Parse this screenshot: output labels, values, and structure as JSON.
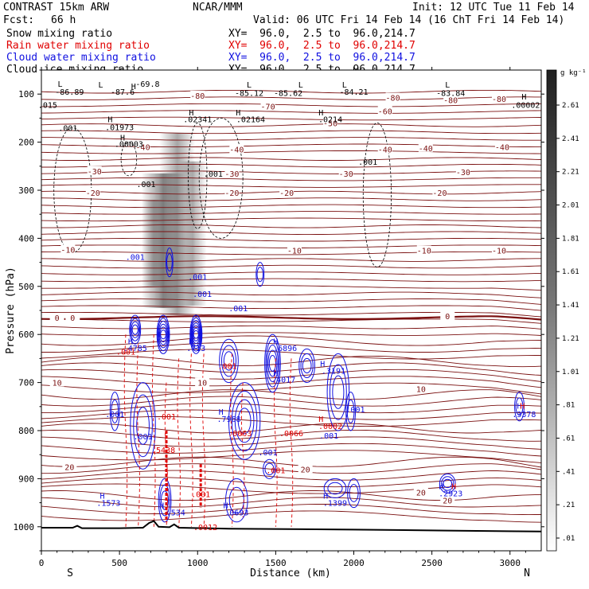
{
  "header": {
    "model": "CONTRAST 15km ARW",
    "org": "NCAR/MMM",
    "init": "Init: 12 UTC Tue 11 Feb 14",
    "fcst_label": "Fcst:",
    "fcst_value": "66 h",
    "valid": "Valid: 06 UTC Fri 14 Feb 14 (16 ChT Fri 14 Feb 14)",
    "fields": [
      {
        "name": "Snow mixing ratio",
        "xy": "XY=  96.0,  2.5 to  96.0,214.7",
        "color": "#000000"
      },
      {
        "name": "Rain water mixing ratio",
        "xy": "XY=  96.0,  2.5 to  96.0,214.7",
        "color": "#e00000"
      },
      {
        "name": "Cloud water mixing ratio",
        "xy": "XY=  96.0,  2.5 to  96.0,214.7",
        "color": "#1010e0"
      },
      {
        "name": "Cloud ice mixing ratio",
        "xy": "XY=  96.0,  2.5 to  96.0,214.7",
        "color": "#000000"
      }
    ]
  },
  "chart_data": {
    "type": "heatmap",
    "title": "",
    "xlabel": "Distance (km)",
    "ylabel": "Pressure (hPa)",
    "xlim": [
      0,
      3200
    ],
    "ylim": [
      1050,
      50
    ],
    "x_ticks": [
      0,
      500,
      1000,
      1500,
      2000,
      2500,
      3000
    ],
    "y_ticks": [
      100,
      200,
      300,
      400,
      500,
      600,
      700,
      800,
      900,
      1000
    ],
    "x_end_labels": {
      "left": "S",
      "right": "N"
    },
    "colorbar": {
      "unit": "g kg⁻¹",
      "ticks": [
        "2.61",
        "2.41",
        "2.21",
        "2.01",
        "1.81",
        "1.61",
        "1.41",
        "1.21",
        "1.01",
        ".81",
        ".61",
        ".41",
        ".21",
        ".01"
      ]
    },
    "temperature_contours": [
      {
        "label": "-80",
        "p": 105
      },
      {
        "label": "-60",
        "p": 135
      },
      {
        "label": "-50",
        "p": 160
      },
      {
        "label": "-40",
        "p": 210
      },
      {
        "label": "-30",
        "p": 260
      },
      {
        "label": "-20",
        "p": 305
      },
      {
        "label": "-10",
        "p": 420
      },
      {
        "label": "0",
        "p": 565
      },
      {
        "label": "10",
        "p": 700
      },
      {
        "label": "20",
        "p": 865
      }
    ],
    "contour_labels": [
      {
        "text": "-80",
        "x": 1000,
        "p": 103
      },
      {
        "text": "-80",
        "x": 2250,
        "p": 107
      },
      {
        "text": "-80",
        "x": 2620,
        "p": 112
      },
      {
        "text": "-80",
        "x": 2930,
        "p": 110
      },
      {
        "text": "-70",
        "x": 1450,
        "p": 125
      },
      {
        "text": "-60",
        "x": 2200,
        "p": 135
      },
      {
        "text": "-50",
        "x": 1850,
        "p": 160
      },
      {
        "text": "-40",
        "x": 650,
        "p": 210
      },
      {
        "text": "-40",
        "x": 1250,
        "p": 215
      },
      {
        "text": "-40",
        "x": 2200,
        "p": 215
      },
      {
        "text": "-40",
        "x": 2460,
        "p": 212
      },
      {
        "text": "-40",
        "x": 2950,
        "p": 210
      },
      {
        "text": "-30",
        "x": 340,
        "p": 260
      },
      {
        "text": "-30",
        "x": 1220,
        "p": 265
      },
      {
        "text": "-30",
        "x": 1950,
        "p": 265
      },
      {
        "text": "-30",
        "x": 2700,
        "p": 262
      },
      {
        "text": "-20",
        "x": 330,
        "p": 305
      },
      {
        "text": "-20",
        "x": 1220,
        "p": 305
      },
      {
        "text": "-20",
        "x": 1570,
        "p": 305
      },
      {
        "text": "-20",
        "x": 2550,
        "p": 305
      },
      {
        "text": "-10",
        "x": 170,
        "p": 423
      },
      {
        "text": "-10",
        "x": 1620,
        "p": 425
      },
      {
        "text": "-10",
        "x": 2450,
        "p": 425
      },
      {
        "text": "-10",
        "x": 2930,
        "p": 425
      },
      {
        "text": "0",
        "x": 100,
        "p": 565
      },
      {
        "text": "0",
        "x": 200,
        "p": 565
      },
      {
        "text": "0",
        "x": 2600,
        "p": 562
      },
      {
        "text": "10",
        "x": 100,
        "p": 700
      },
      {
        "text": "10",
        "x": 2430,
        "p": 713
      },
      {
        "text": "20",
        "x": 180,
        "p": 875
      },
      {
        "text": "20",
        "x": 1690,
        "p": 880
      },
      {
        "text": "20",
        "x": 2430,
        "p": 928
      },
      {
        "text": "20",
        "x": 2600,
        "p": 945
      },
      {
        "text": "10",
        "x": 1030,
        "p": 700
      }
    ],
    "black_labels": [
      {
        "text": "L",
        "x": 120,
        "p": 78
      },
      {
        "text": "-86.89",
        "x": 180,
        "p": 95
      },
      {
        "text": "L",
        "x": 380,
        "p": 80
      },
      {
        "text": "-87.6",
        "x": 520,
        "p": 95
      },
      {
        "text": "H",
        "x": 590,
        "p": 83
      },
      {
        "text": "-69.8",
        "x": 680,
        "p": 78
      },
      {
        "text": "L",
        "x": 1330,
        "p": 80
      },
      {
        "text": "-85.12",
        "x": 1330,
        "p": 97
      },
      {
        "text": "L",
        "x": 1660,
        "p": 80
      },
      {
        "text": "-85.62",
        "x": 1580,
        "p": 97
      },
      {
        "text": "L",
        "x": 1940,
        "p": 80
      },
      {
        "text": "-84.21",
        "x": 2000,
        "p": 95
      },
      {
        "text": "L",
        "x": 2600,
        "p": 80
      },
      {
        "text": "-83.84",
        "x": 2620,
        "p": 97
      },
      {
        "text": "H",
        "x": 3090,
        "p": 105
      },
      {
        "text": ".00002",
        "x": 3100,
        "p": 122
      },
      {
        "text": ".015",
        "x": 40,
        "p": 122
      },
      {
        "text": "H",
        "x": 440,
        "p": 152
      },
      {
        "text": ".01973",
        "x": 500,
        "p": 168
      },
      {
        "text": "H",
        "x": 960,
        "p": 138
      },
      {
        "text": ".02341",
        "x": 1000,
        "p": 152
      },
      {
        "text": "H",
        "x": 1260,
        "p": 138
      },
      {
        "text": ".02164",
        "x": 1340,
        "p": 152
      },
      {
        "text": "H",
        "x": 1790,
        "p": 138
      },
      {
        "text": ".0214",
        "x": 1850,
        "p": 152
      },
      {
        "text": ".001",
        "x": 170,
        "p": 170
      },
      {
        "text": "H",
        "x": 520,
        "p": 190
      },
      {
        "text": ".00003",
        "x": 560,
        "p": 203
      },
      {
        "text": ".001",
        "x": 2090,
        "p": 240
      },
      {
        "text": ".001",
        "x": 670,
        "p": 287
      },
      {
        "text": ".001",
        "x": 1100,
        "p": 265
      }
    ],
    "cloud_water_labels": [
      {
        "text": ".001",
        "x": 600,
        "p": 438
      },
      {
        "text": ".001",
        "x": 1000,
        "p": 480
      },
      {
        "text": ".001",
        "x": 1030,
        "p": 515
      },
      {
        "text": ".001",
        "x": 1260,
        "p": 545
      },
      {
        "text": "H",
        "x": 570,
        "p": 614
      },
      {
        "text": ".4785",
        "x": 600,
        "p": 628
      },
      {
        "text": "H",
        "x": 960,
        "p": 614
      },
      {
        "text": ".713",
        "x": 990,
        "p": 628
      },
      {
        "text": "H",
        "x": 1500,
        "p": 614
      },
      {
        "text": ".6896",
        "x": 1560,
        "p": 628
      },
      {
        "text": "H",
        "x": 1800,
        "p": 660
      },
      {
        "text": ".3191",
        "x": 1870,
        "p": 675
      },
      {
        "text": "H",
        "x": 1500,
        "p": 680
      },
      {
        "text": ".4017",
        "x": 1550,
        "p": 693
      },
      {
        "text": ".001",
        "x": 470,
        "p": 765
      },
      {
        "text": "H",
        "x": 1150,
        "p": 760
      },
      {
        "text": ".7968",
        "x": 1200,
        "p": 775
      },
      {
        "text": ".001",
        "x": 2010,
        "p": 755
      },
      {
        "text": ".001",
        "x": 650,
        "p": 812
      },
      {
        "text": ".001",
        "x": 1840,
        "p": 810
      },
      {
        "text": ".001",
        "x": 1450,
        "p": 845
      },
      {
        "text": "H",
        "x": 3060,
        "p": 748
      },
      {
        "text": ".3378",
        "x": 3090,
        "p": 765
      },
      {
        "text": "H",
        "x": 390,
        "p": 935
      },
      {
        "text": ".1573",
        "x": 430,
        "p": 950
      },
      {
        "text": "H",
        "x": 770,
        "p": 955
      },
      {
        "text": ".534",
        "x": 860,
        "p": 970
      },
      {
        "text": "H",
        "x": 1180,
        "p": 955
      },
      {
        "text": ".0693",
        "x": 1250,
        "p": 970
      },
      {
        "text": "H",
        "x": 1820,
        "p": 935
      },
      {
        "text": ".1399",
        "x": 1880,
        "p": 950
      },
      {
        "text": "H",
        "x": 2560,
        "p": 915
      },
      {
        "text": ".2923",
        "x": 2620,
        "p": 930
      }
    ],
    "rain_labels": [
      {
        "text": ".001",
        "x": 540,
        "p": 635
      },
      {
        "text": ".001",
        "x": 1190,
        "p": 665
      },
      {
        "text": ".001",
        "x": 800,
        "p": 770
      },
      {
        "text": ".5438",
        "x": 780,
        "p": 840
      },
      {
        "text": ".001",
        "x": 1020,
        "p": 932
      },
      {
        "text": ".0012",
        "x": 1050,
        "p": 1000
      },
      {
        "text": ".0063",
        "x": 1270,
        "p": 805
      },
      {
        "text": ".001",
        "x": 1500,
        "p": 882
      },
      {
        "text": ".0066",
        "x": 1600,
        "p": 805
      },
      {
        "text": "H",
        "x": 1790,
        "p": 775
      },
      {
        "text": ".0002",
        "x": 1850,
        "p": 790
      },
      {
        "text": "H",
        "x": 3080,
        "p": 748
      },
      {
        "text": "H",
        "x": 2640,
        "p": 915
      }
    ]
  }
}
